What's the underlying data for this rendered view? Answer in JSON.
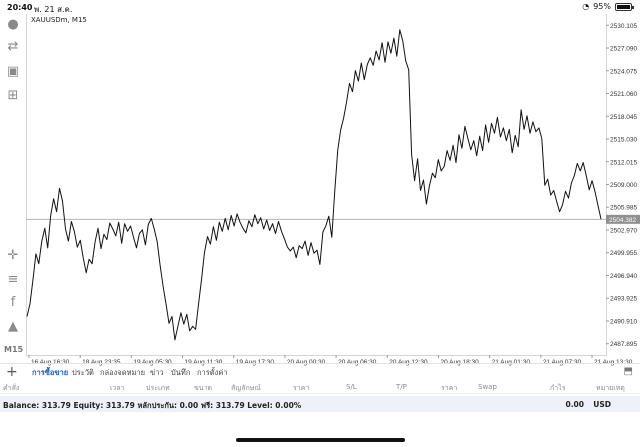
{
  "status_bar": {
    "time": "20:40",
    "date": "พ. 21 ส.ค.",
    "battery": "95%",
    "wifi_icon": "wifi-icon",
    "battery_icon": "battery-icon"
  },
  "symbol_label": "XAUUSDm, M15",
  "toolbar": {
    "timeframe": "M15",
    "icons": [
      "account-icon",
      "trade-arrows-icon",
      "chat-icon",
      "add-chart-icon",
      "crosshair-icon",
      "indicators-icon",
      "function-icon",
      "objects-icon"
    ]
  },
  "price_axis": [
    "2530.105",
    "2527.090",
    "2524.075",
    "2521.060",
    "2518.045",
    "2515.030",
    "2512.015",
    "2509.000",
    "2505.985",
    "2502.970",
    "2499.955",
    "2496.940",
    "2493.925",
    "2490.910",
    "2487.895"
  ],
  "current_price": "2504.382",
  "time_axis": [
    "16 Aug 16:30",
    "18 Aug 23:35",
    "19 Aug 05:30",
    "19 Aug 11:30",
    "19 Aug 17:30",
    "20 Aug 00:30",
    "20 Aug 06:30",
    "20 Aug 12:30",
    "20 Aug 18:30",
    "21 Aug 01:30",
    "21 Aug 07:30",
    "21 Aug 13:30"
  ],
  "colors": {
    "accent": "#1e62d0",
    "price_tag": "#8f8f8f",
    "line": "#111111"
  },
  "tabs": [
    "การซื้อขาย",
    "ประวัติ",
    "กล่องจดหมาย",
    "ข่าว",
    "บันทึก",
    "การตั้งค่า"
  ],
  "table_headers": [
    "คำสั่ง",
    "เวลา",
    "ประเภท",
    "ขนาด",
    "สัญลักษณ์",
    "ราคา",
    "S/L",
    "T/P",
    "ราคา",
    "Swap",
    "กำไร",
    "หมายเหตุ"
  ],
  "balance": {
    "text": "Balance: 313.79 Equity: 313.79 หลักประกัน: 0.00 ฟรี: 313.79 Level: 0.00%",
    "total": "0.00",
    "currency": "USD"
  },
  "chart_data": {
    "type": "line",
    "title": "XAUUSDm, M15",
    "xlabel": "",
    "ylabel": "",
    "ylim": [
      2486.4,
      2531.6
    ],
    "x_ticks": [
      "16 Aug 16:30",
      "18 Aug 23:35",
      "19 Aug 05:30",
      "19 Aug 11:30",
      "19 Aug 17:30",
      "20 Aug 00:30",
      "20 Aug 06:30",
      "20 Aug 12:30",
      "20 Aug 18:30",
      "21 Aug 01:30",
      "21 Aug 07:30",
      "21 Aug 13:30"
    ],
    "current_price": 2504.382,
    "grid": false,
    "values": [
      2491.5,
      2493.2,
      2496.3,
      2499.8,
      2498.5,
      2501.5,
      2503.2,
      2500.6,
      2504.9,
      2507.1,
      2505.4,
      2508.5,
      2506.8,
      2503.1,
      2501.5,
      2504.1,
      2502.8,
      2500.7,
      2501.6,
      2499.3,
      2497.3,
      2499.1,
      2498.5,
      2501.4,
      2503.2,
      2500.5,
      2502.4,
      2501.7,
      2503.9,
      2503.1,
      2502.2,
      2504.0,
      2501.2,
      2503.8,
      2502.8,
      2503.5,
      2502.0,
      2500.6,
      2502.5,
      2503.0,
      2501.0,
      2503.7,
      2504.5,
      2503.1,
      2501.4,
      2498.3,
      2495.5,
      2493.1,
      2490.6,
      2491.5,
      2488.4,
      2490.2,
      2492.0,
      2490.5,
      2491.8,
      2489.6,
      2490.2,
      2489.8,
      2493.2,
      2496.5,
      2500.0,
      2502.1,
      2501.1,
      2503.4,
      2501.6,
      2504.0,
      2502.8,
      2504.5,
      2503.0,
      2504.9,
      2503.5,
      2505.1,
      2504.0,
      2503.2,
      2502.6,
      2504.2,
      2503.4,
      2505.0,
      2503.8,
      2504.6,
      2503.1,
      2504.3,
      2502.9,
      2503.8,
      2502.5,
      2504.1,
      2502.8,
      2501.8,
      2500.7,
      2500.2,
      2500.7,
      2499.3,
      2500.9,
      2500.5,
      2501.5,
      2499.6,
      2501.3,
      2499.9,
      2500.3,
      2498.4,
      2502.7,
      2503.5,
      2504.8,
      2502.0,
      2508.0,
      2513.5,
      2516.2,
      2517.8,
      2519.9,
      2522.4,
      2521.3,
      2524.1,
      2522.7,
      2525.1,
      2522.9,
      2524.9,
      2525.8,
      2524.8,
      2526.7,
      2525.5,
      2527.8,
      2525.2,
      2527.9,
      2526.4,
      2528.4,
      2526.0,
      2529.5,
      2528.0,
      2525.4,
      2524.2,
      2513.0,
      2509.5,
      2512.4,
      2508.2,
      2509.6,
      2506.4,
      2508.8,
      2510.5,
      2509.9,
      2512.3,
      2510.8,
      2511.4,
      2513.5,
      2512.2,
      2514.2,
      2511.9,
      2515.6,
      2513.8,
      2516.7,
      2515.1,
      2513.6,
      2514.8,
      2512.8,
      2515.4,
      2513.5,
      2516.9,
      2514.6,
      2517.1,
      2515.8,
      2517.9,
      2515.3,
      2516.5,
      2514.8,
      2516.3,
      2513.2,
      2515.5,
      2514.0,
      2518.9,
      2516.3,
      2518.1,
      2515.8,
      2517.3,
      2516.0,
      2516.5,
      2515.1,
      2508.9,
      2509.7,
      2507.6,
      2508.2,
      2506.8,
      2505.4,
      2506.3,
      2508.1,
      2507.2,
      2509.2,
      2510.2,
      2511.8,
      2510.8,
      2511.9,
      2510.2,
      2508.3,
      2509.5,
      2508.0,
      2506.2,
      2504.4
    ]
  }
}
